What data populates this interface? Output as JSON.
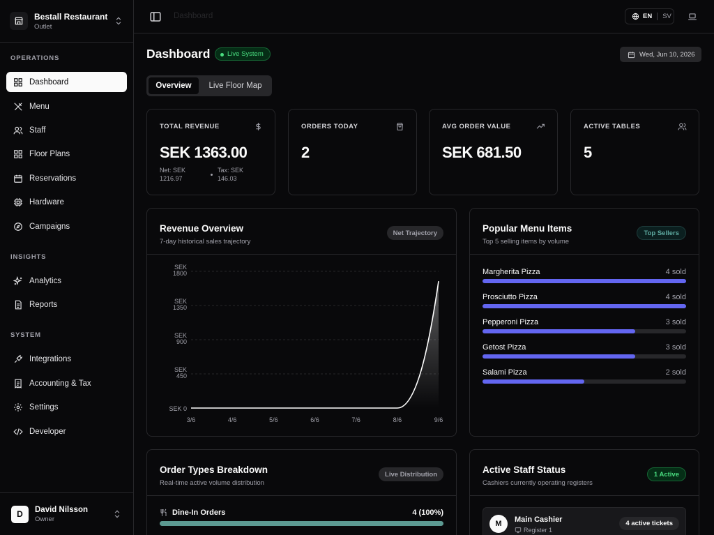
{
  "org": {
    "name": "Bestall Restaurant",
    "subtitle": "Outlet"
  },
  "sidebar": {
    "sections": [
      {
        "label": "OPERATIONS",
        "items": [
          {
            "label": "Dashboard",
            "icon": "layout-grid-icon",
            "active": true
          },
          {
            "label": "Menu",
            "icon": "utensils-icon"
          },
          {
            "label": "Staff",
            "icon": "users-icon"
          },
          {
            "label": "Floor Plans",
            "icon": "layout-icon"
          },
          {
            "label": "Reservations",
            "icon": "calendar-icon"
          },
          {
            "label": "Hardware",
            "icon": "cpu-icon"
          },
          {
            "label": "Campaigns",
            "icon": "compass-icon"
          }
        ]
      },
      {
        "label": "INSIGHTS",
        "items": [
          {
            "label": "Analytics",
            "icon": "sparkles-icon"
          },
          {
            "label": "Reports",
            "icon": "file-text-icon"
          }
        ]
      },
      {
        "label": "SYSTEM",
        "items": [
          {
            "label": "Integrations",
            "icon": "plug-icon"
          },
          {
            "label": "Accounting & Tax",
            "icon": "receipt-icon"
          },
          {
            "label": "Settings",
            "icon": "gear-icon"
          },
          {
            "label": "Developer",
            "icon": "code-icon"
          }
        ]
      }
    ]
  },
  "user": {
    "initial": "D",
    "name": "David Nilsson",
    "role": "Owner"
  },
  "topbar": {
    "breadcrumb": "Dashboard",
    "lang_active": "EN",
    "lang_other": "SV"
  },
  "header": {
    "title": "Dashboard",
    "live_badge": "Live System",
    "date": "Wed, Jun 10, 2026"
  },
  "tabs": [
    {
      "label": "Overview",
      "active": true
    },
    {
      "label": "Live Floor Map",
      "active": false
    }
  ],
  "kpis": [
    {
      "label": "TOTAL REVENUE",
      "value": "SEK 1363.00",
      "icon": "dollar-icon",
      "net_line1": "Net: SEK",
      "net_line2": "1216.97",
      "tax_line1": "Tax: SEK",
      "tax_line2": "146.03"
    },
    {
      "label": "ORDERS TODAY",
      "value": "2",
      "icon": "shopping-bag-icon"
    },
    {
      "label": "AVG ORDER VALUE",
      "value": "SEK 681.50",
      "icon": "trending-up-icon"
    },
    {
      "label": "ACTIVE TABLES",
      "value": "5",
      "icon": "users-icon"
    }
  ],
  "revenue": {
    "title": "Revenue Overview",
    "subtitle": "7-day historical sales trajectory",
    "badge": "Net Trajectory",
    "chart_data": {
      "type": "area",
      "categories": [
        "3/6",
        "4/6",
        "5/6",
        "6/6",
        "7/6",
        "8/6",
        "9/6"
      ],
      "values": [
        0,
        0,
        0,
        0,
        0,
        0,
        1670
      ],
      "y_ticks": [
        {
          "value": 1800,
          "line1": "SEK",
          "line2": "1800"
        },
        {
          "value": 1350,
          "line1": "SEK",
          "line2": "1350"
        },
        {
          "value": 900,
          "line1": "SEK",
          "line2": "900"
        },
        {
          "value": 450,
          "line1": "SEK",
          "line2": "450"
        },
        {
          "value": 0,
          "line1": "",
          "line2": "SEK 0"
        }
      ],
      "ylim": [
        0,
        1800
      ],
      "grid": true,
      "color": "#ffffff"
    }
  },
  "popular": {
    "title": "Popular Menu Items",
    "subtitle": "Top 5 selling items by volume",
    "badge": "Top Sellers",
    "items": [
      {
        "name": "Margherita Pizza",
        "count": "4 sold",
        "fraction": 1.0
      },
      {
        "name": "Prosciutto Pizza",
        "count": "4 sold",
        "fraction": 1.0
      },
      {
        "name": "Pepperoni Pizza",
        "count": "3 sold",
        "fraction": 0.75
      },
      {
        "name": "Getost Pizza",
        "count": "3 sold",
        "fraction": 0.75
      },
      {
        "name": "Salami Pizza",
        "count": "2 sold",
        "fraction": 0.5
      }
    ]
  },
  "order_types": {
    "title": "Order Types Breakdown",
    "subtitle": "Real-time active volume distribution",
    "badge": "Live Distribution",
    "rows": [
      {
        "label": "Dine-In Orders",
        "value": "4 (100%)",
        "fraction": 1.0,
        "icon": "utensils-icon"
      }
    ]
  },
  "staff": {
    "title": "Active Staff Status",
    "subtitle": "Cashiers currently operating registers",
    "badge": "1 Active",
    "members": [
      {
        "initial": "M",
        "name": "Main Cashier",
        "register": "Register 1",
        "tickets": "4 active tickets"
      }
    ]
  },
  "colors": {
    "accent": "#6366f1",
    "teal": "#5c9a92",
    "live_green": "#4ade80"
  }
}
